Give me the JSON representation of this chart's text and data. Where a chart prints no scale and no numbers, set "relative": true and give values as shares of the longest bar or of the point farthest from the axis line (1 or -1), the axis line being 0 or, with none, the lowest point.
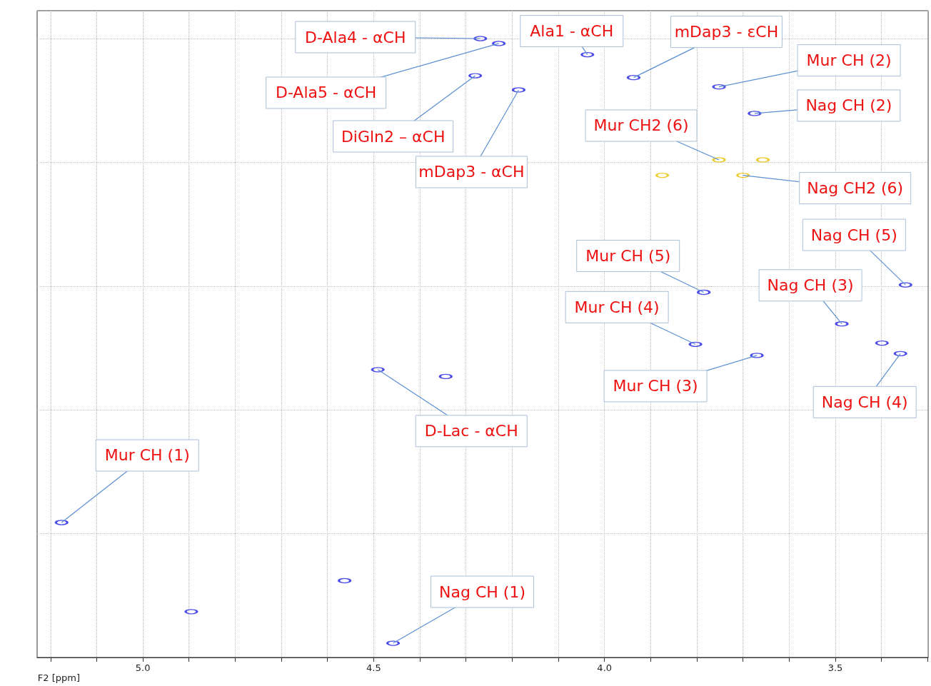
{
  "chart_data": {
    "type": "scatter",
    "xlabel": "F2 [ppm]",
    "relative": true,
    "xlim": [
      5.229,
      3.299
    ],
    "xticks": [
      {
        "value": 5.2,
        "label": null
      },
      {
        "value": 5.1,
        "label": null
      },
      {
        "value": 5.0,
        "label": "5.0"
      },
      {
        "value": 4.9,
        "label": null
      },
      {
        "value": 4.8,
        "label": null
      },
      {
        "value": 4.7,
        "label": null
      },
      {
        "value": 4.6,
        "label": null
      },
      {
        "value": 4.5,
        "label": "4.5"
      },
      {
        "value": 4.4,
        "label": null
      },
      {
        "value": 4.3,
        "label": null
      },
      {
        "value": 4.2,
        "label": null
      },
      {
        "value": 4.1,
        "label": null
      },
      {
        "value": 4.0,
        "label": "4.0"
      },
      {
        "value": 3.9,
        "label": null
      },
      {
        "value": 3.8,
        "label": null
      },
      {
        "value": 3.7,
        "label": null
      },
      {
        "value": 3.6,
        "label": null
      },
      {
        "value": 3.5,
        "label": "3.5"
      },
      {
        "value": 3.4,
        "label": null
      },
      {
        "value": 3.3,
        "label": null
      }
    ],
    "grid": true,
    "marker": "circle",
    "tick_labels": "x",
    "series": [
      {
        "color": "#1f1fe0",
        "x": [
          4.269,
          4.229,
          4.037,
          3.937,
          3.752,
          4.28,
          4.186,
          3.675,
          3.348,
          3.785,
          3.486,
          3.803,
          3.399,
          3.359,
          3.67,
          4.491,
          4.344,
          5.176,
          4.563,
          4.895,
          4.458
        ],
        "values": [
          1.0,
          0.992,
          0.974,
          0.937,
          0.922,
          0.94,
          0.917,
          0.879,
          0.602,
          0.59,
          0.539,
          0.506,
          0.508,
          0.491,
          0.488,
          0.465,
          0.454,
          0.218,
          0.124,
          0.074,
          0.023
        ]
      },
      {
        "color": "#e8c000",
        "x": [
          3.752,
          3.657,
          3.875,
          3.7
        ],
        "values": [
          0.804,
          0.804,
          0.779,
          0.779
        ]
      }
    ],
    "annotations": [
      {
        "text": "D-Ala4 - αCH",
        "x": 4.269,
        "y": 1.0
      },
      {
        "text": "Ala1 - αCH",
        "x": 4.037,
        "y": 0.974
      },
      {
        "text": "mDap3 - εCH",
        "x": 3.937,
        "y": 0.937
      },
      {
        "text": "Mur CH (2)",
        "x": 3.752,
        "y": 0.922
      },
      {
        "text": "D-Ala5 - αCH",
        "x": 4.229,
        "y": 0.992
      },
      {
        "text": "DiGln2 – αCH",
        "x": 4.28,
        "y": 0.94
      },
      {
        "text": "mDap3 - αCH",
        "x": 4.186,
        "y": 0.917
      },
      {
        "text": "Nag CH (2)",
        "x": 3.675,
        "y": 0.879
      },
      {
        "text": "Mur CH2 (6)",
        "x": 3.752,
        "y": 0.804
      },
      {
        "text": "Nag CH2 (6)",
        "x": 3.7,
        "y": 0.779
      },
      {
        "text": "Nag CH (5)",
        "x": 3.348,
        "y": 0.602
      },
      {
        "text": "Mur CH (5)",
        "x": 3.785,
        "y": 0.59
      },
      {
        "text": "Nag CH (3)",
        "x": 3.486,
        "y": 0.539
      },
      {
        "text": "Mur CH (4)",
        "x": 3.803,
        "y": 0.506
      },
      {
        "text": "Nag CH (4)",
        "x": 3.359,
        "y": 0.491
      },
      {
        "text": "Mur CH (3)",
        "x": 3.67,
        "y": 0.488
      },
      {
        "text": "D-Lac - αCH",
        "x": 4.491,
        "y": 0.465
      },
      {
        "text": "Mur CH (1)",
        "x": 5.176,
        "y": 0.218
      },
      {
        "text": "Nag CH (1)",
        "x": 4.458,
        "y": 0.023
      }
    ]
  }
}
